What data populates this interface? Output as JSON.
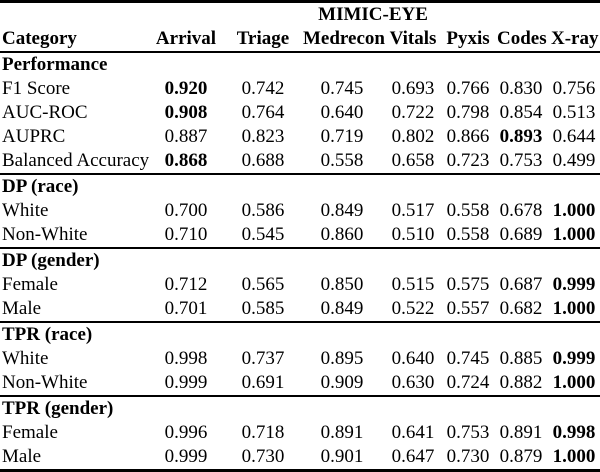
{
  "colors": {
    "text": "#000000",
    "background": "#ffffff"
  },
  "table": {
    "group_header": "MIMIC-EYE",
    "columns": [
      "Category",
      "Arrival",
      "Triage",
      "Medrecon",
      "Vitals",
      "Pyxis",
      "Codes",
      "X-ray"
    ],
    "sections": [
      {
        "title": "Performance",
        "rows": [
          {
            "label": "F1 Score",
            "values": [
              "0.920",
              "0.742",
              "0.745",
              "0.693",
              "0.766",
              "0.830",
              "0.756"
            ],
            "bold_value_indices": [
              0
            ]
          },
          {
            "label": "AUC-ROC",
            "values": [
              "0.908",
              "0.764",
              "0.640",
              "0.722",
              "0.798",
              "0.854",
              "0.513"
            ],
            "bold_value_indices": [
              0
            ]
          },
          {
            "label": "AUPRC",
            "values": [
              "0.887",
              "0.823",
              "0.719",
              "0.802",
              "0.866",
              "0.893",
              "0.644"
            ],
            "bold_value_indices": [
              5
            ]
          },
          {
            "label": "Balanced Accuracy",
            "values": [
              "0.868",
              "0.688",
              "0.558",
              "0.658",
              "0.723",
              "0.753",
              "0.499"
            ],
            "bold_value_indices": [
              0
            ]
          }
        ]
      },
      {
        "title": "DP (race)",
        "rows": [
          {
            "label": "White",
            "values": [
              "0.700",
              "0.586",
              "0.849",
              "0.517",
              "0.558",
              "0.678",
              "1.000"
            ],
            "bold_value_indices": [
              6
            ]
          },
          {
            "label": "Non-White",
            "values": [
              "0.710",
              "0.545",
              "0.860",
              "0.510",
              "0.558",
              "0.689",
              "1.000"
            ],
            "bold_value_indices": [
              6
            ]
          }
        ]
      },
      {
        "title": "DP (gender)",
        "rows": [
          {
            "label": "Female",
            "values": [
              "0.712",
              "0.565",
              "0.850",
              "0.515",
              "0.575",
              "0.687",
              "0.999"
            ],
            "bold_value_indices": [
              6
            ]
          },
          {
            "label": "Male",
            "values": [
              "0.701",
              "0.585",
              "0.849",
              "0.522",
              "0.557",
              "0.682",
              "1.000"
            ],
            "bold_value_indices": [
              6
            ]
          }
        ]
      },
      {
        "title": "TPR (race)",
        "rows": [
          {
            "label": "White",
            "values": [
              "0.998",
              "0.737",
              "0.895",
              "0.640",
              "0.745",
              "0.885",
              "0.999"
            ],
            "bold_value_indices": [
              6
            ]
          },
          {
            "label": "Non-White",
            "values": [
              "0.999",
              "0.691",
              "0.909",
              "0.630",
              "0.724",
              "0.882",
              "1.000"
            ],
            "bold_value_indices": [
              6
            ]
          }
        ]
      },
      {
        "title": "TPR (gender)",
        "rows": [
          {
            "label": "Female",
            "values": [
              "0.996",
              "0.718",
              "0.891",
              "0.641",
              "0.753",
              "0.891",
              "0.998"
            ],
            "bold_value_indices": [
              6
            ]
          },
          {
            "label": "Male",
            "values": [
              "0.999",
              "0.730",
              "0.901",
              "0.647",
              "0.730",
              "0.879",
              "1.000"
            ],
            "bold_value_indices": [
              6
            ]
          }
        ]
      }
    ]
  }
}
